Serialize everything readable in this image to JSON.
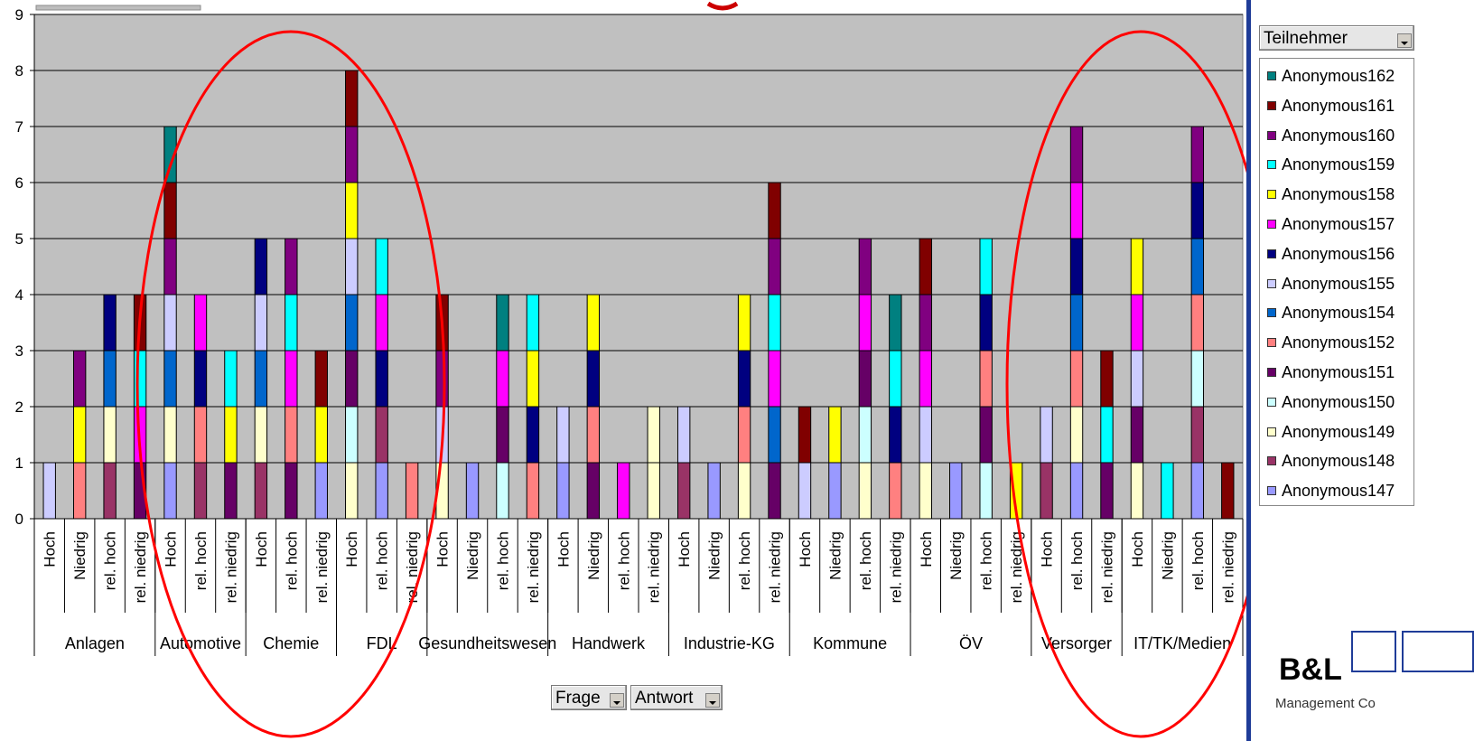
{
  "chart_data": {
    "type": "bar",
    "stacked": true,
    "title": "",
    "xlabel": "",
    "ylabel": "",
    "ylim": [
      0,
      9
    ],
    "yticks": [
      "0",
      "1",
      "2",
      "3",
      "4",
      "5",
      "6",
      "7",
      "8",
      "9"
    ],
    "grid": true,
    "legend_title": "Teilnehmer",
    "legend_position": "right",
    "legend": [
      {
        "name": "Anonymous162",
        "color": "#008080"
      },
      {
        "name": "Anonymous161",
        "color": "#800000"
      },
      {
        "name": "Anonymous160",
        "color": "#800080"
      },
      {
        "name": "Anonymous159",
        "color": "#00ffff"
      },
      {
        "name": "Anonymous158",
        "color": "#ffff00"
      },
      {
        "name": "Anonymous157",
        "color": "#ff00ff"
      },
      {
        "name": "Anonymous156",
        "color": "#000080"
      },
      {
        "name": "Anonymous155",
        "color": "#ccccff"
      },
      {
        "name": "Anonymous154",
        "color": "#0066cc"
      },
      {
        "name": "Anonymous152",
        "color": "#ff8080"
      },
      {
        "name": "Anonymous151",
        "color": "#660066"
      },
      {
        "name": "Anonymous150",
        "color": "#ccffff"
      },
      {
        "name": "Anonymous149",
        "color": "#ffffcc"
      },
      {
        "name": "Anonymous148",
        "color": "#993366"
      },
      {
        "name": "Anonymous147",
        "color": "#9999ff"
      }
    ],
    "groups": [
      {
        "name": "Anlagen",
        "bars": [
          {
            "label": "Hoch",
            "segments": [
              "Anonymous155"
            ]
          },
          {
            "label": "Niedrig",
            "segments": [
              "Anonymous152",
              "Anonymous158",
              "Anonymous160"
            ]
          },
          {
            "label": "rel. hoch",
            "segments": [
              "Anonymous148",
              "Anonymous149",
              "Anonymous154",
              "Anonymous156"
            ]
          },
          {
            "label": "rel. niedrig",
            "segments": [
              "Anonymous151",
              "Anonymous157",
              "Anonymous159",
              "Anonymous161"
            ]
          }
        ]
      },
      {
        "name": "Automotive",
        "bars": [
          {
            "label": "Hoch",
            "segments": [
              "Anonymous147",
              "Anonymous149",
              "Anonymous154",
              "Anonymous155",
              "Anonymous160",
              "Anonymous161",
              "Anonymous162"
            ]
          },
          {
            "label": "rel. hoch",
            "segments": [
              "Anonymous148",
              "Anonymous152",
              "Anonymous156",
              "Anonymous157"
            ]
          },
          {
            "label": "rel. niedrig",
            "segments": [
              "Anonymous151",
              "Anonymous158",
              "Anonymous159"
            ]
          }
        ]
      },
      {
        "name": "Chemie",
        "bars": [
          {
            "label": "Hoch",
            "segments": [
              "Anonymous148",
              "Anonymous149",
              "Anonymous154",
              "Anonymous155",
              "Anonymous156"
            ]
          },
          {
            "label": "rel. hoch",
            "segments": [
              "Anonymous151",
              "Anonymous152",
              "Anonymous157",
              "Anonymous159",
              "Anonymous160"
            ]
          },
          {
            "label": "rel. niedrig",
            "segments": [
              "Anonymous147",
              "Anonymous158",
              "Anonymous161"
            ]
          }
        ]
      },
      {
        "name": "FDL",
        "bars": [
          {
            "label": "Hoch",
            "segments": [
              "Anonymous149",
              "Anonymous150",
              "Anonymous151",
              "Anonymous154",
              "Anonymous155",
              "Anonymous158",
              "Anonymous160",
              "Anonymous161"
            ]
          },
          {
            "label": "rel. hoch",
            "segments": [
              "Anonymous147",
              "Anonymous148",
              "Anonymous156",
              "Anonymous157",
              "Anonymous159"
            ]
          },
          {
            "label": "rel. niedrig",
            "segments": [
              "Anonymous152"
            ]
          }
        ]
      },
      {
        "name": "Gesundheitswesen",
        "bars": [
          {
            "label": "Hoch",
            "segments": [
              "Anonymous149",
              "Anonymous155",
              "Anonymous160",
              "Anonymous161"
            ]
          },
          {
            "label": "Niedrig",
            "segments": [
              "Anonymous147"
            ]
          },
          {
            "label": "rel. hoch",
            "segments": [
              "Anonymous150",
              "Anonymous151",
              "Anonymous157",
              "Anonymous162"
            ]
          },
          {
            "label": "rel. niedrig",
            "segments": [
              "Anonymous152",
              "Anonymous156",
              "Anonymous158",
              "Anonymous159"
            ]
          }
        ]
      },
      {
        "name": "Handwerk",
        "bars": [
          {
            "label": "Hoch",
            "segments": [
              "Anonymous147",
              "Anonymous155"
            ]
          },
          {
            "label": "Niedrig",
            "segments": [
              "Anonymous151",
              "Anonymous152",
              "Anonymous156",
              "Anonymous158"
            ]
          },
          {
            "label": "rel. hoch",
            "segments": [
              "Anonymous157"
            ]
          },
          {
            "label": "rel. niedrig",
            "segments": [
              "Anonymous149",
              "Anonymous149"
            ]
          }
        ]
      },
      {
        "name": "Industrie-KG",
        "bars": [
          {
            "label": "Hoch",
            "segments": [
              "Anonymous148",
              "Anonymous155"
            ]
          },
          {
            "label": "Niedrig",
            "segments": [
              "Anonymous147"
            ]
          },
          {
            "label": "rel. hoch",
            "segments": [
              "Anonymous149",
              "Anonymous152",
              "Anonymous156",
              "Anonymous158"
            ]
          },
          {
            "label": "rel. niedrig",
            "segments": [
              "Anonymous151",
              "Anonymous154",
              "Anonymous157",
              "Anonymous159",
              "Anonymous160",
              "Anonymous161"
            ]
          }
        ]
      },
      {
        "name": "Kommune",
        "bars": [
          {
            "label": "Hoch",
            "segments": [
              "Anonymous155",
              "Anonymous161"
            ]
          },
          {
            "label": "Niedrig",
            "segments": [
              "Anonymous147",
              "Anonymous158"
            ]
          },
          {
            "label": "rel. hoch",
            "segments": [
              "Anonymous149",
              "Anonymous150",
              "Anonymous151",
              "Anonymous157",
              "Anonymous160"
            ]
          },
          {
            "label": "rel. niedrig",
            "segments": [
              "Anonymous152",
              "Anonymous156",
              "Anonymous159",
              "Anonymous162"
            ]
          }
        ]
      },
      {
        "name": "ÖV",
        "bars": [
          {
            "label": "Hoch",
            "segments": [
              "Anonymous149",
              "Anonymous155",
              "Anonymous157",
              "Anonymous160",
              "Anonymous161"
            ]
          },
          {
            "label": "Niedrig",
            "segments": [
              "Anonymous147"
            ]
          },
          {
            "label": "rel. hoch",
            "segments": [
              "Anonymous150",
              "Anonymous151",
              "Anonymous152",
              "Anonymous156",
              "Anonymous159"
            ]
          },
          {
            "label": "rel. niedrig",
            "segments": [
              "Anonymous158"
            ]
          }
        ]
      },
      {
        "name": "Versorger",
        "bars": [
          {
            "label": "Hoch",
            "segments": [
              "Anonymous148",
              "Anonymous155"
            ]
          },
          {
            "label": "rel. hoch",
            "segments": [
              "Anonymous147",
              "Anonymous149",
              "Anonymous152",
              "Anonymous154",
              "Anonymous156",
              "Anonymous157",
              "Anonymous160"
            ]
          },
          {
            "label": "rel. niedrig",
            "segments": [
              "Anonymous151",
              "Anonymous159",
              "Anonymous161"
            ]
          }
        ]
      },
      {
        "name": "IT/TK/Medien",
        "bars": [
          {
            "label": "Hoch",
            "segments": [
              "Anonymous149",
              "Anonymous151",
              "Anonymous155",
              "Anonymous157",
              "Anonymous158"
            ]
          },
          {
            "label": "Niedrig",
            "segments": [
              "Anonymous159"
            ]
          },
          {
            "label": "rel. hoch",
            "segments": [
              "Anonymous147",
              "Anonymous148",
              "Anonymous150",
              "Anonymous152",
              "Anonymous154",
              "Anonymous156",
              "Anonymous160"
            ]
          },
          {
            "label": "rel. niedrig",
            "segments": [
              "Anonymous161"
            ]
          }
        ]
      }
    ]
  },
  "controls": {
    "legend_dropdown_label": "Teilnehmer",
    "frage_label": "Frage",
    "antwort_label": "Antwort"
  },
  "logo": {
    "text": "B&L",
    "subtitle": "Management Co"
  }
}
